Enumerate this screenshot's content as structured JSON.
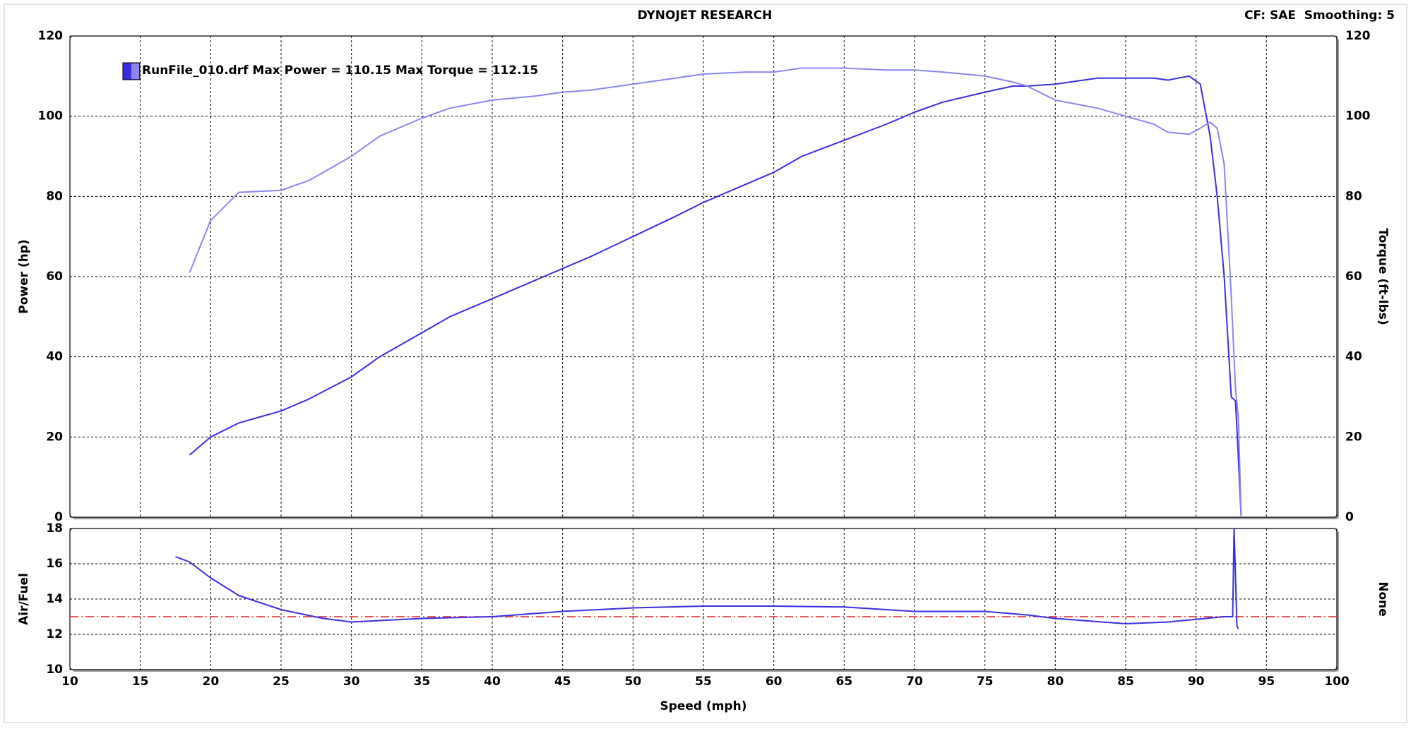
{
  "chart_data": [
    {
      "type": "line",
      "title": "DYNOJET RESEARCH",
      "annotation": "CF: SAE  Smoothing: 5",
      "legend": "RunFile_010.drf Max Power = 110.15 Max Torque = 112.15",
      "ylabel": "Power (hp)",
      "y2label": "Torque (ft-lbs)",
      "x": [
        18.5,
        20,
        22,
        25,
        27,
        30,
        32,
        35,
        37,
        40,
        43,
        45,
        47,
        50,
        53,
        55,
        58,
        60,
        62,
        65,
        68,
        70,
        72,
        75,
        77,
        78,
        80,
        83,
        85,
        87,
        88,
        89.5,
        90.3,
        91,
        91.5,
        92,
        92.5,
        92.8,
        93,
        93.2
      ],
      "series": [
        {
          "color": "#3a2ee0",
          "values": [
            15.5,
            20,
            23.5,
            26.5,
            29.5,
            35,
            40,
            46,
            50,
            54.5,
            59,
            62,
            65,
            70,
            75,
            78.5,
            83,
            86,
            90,
            94,
            98,
            101,
            103.5,
            106,
            107.5,
            107.5,
            108,
            109.5,
            109.5,
            109.5,
            109,
            110,
            108,
            95,
            80,
            60,
            30,
            29,
            15,
            0
          ]
        },
        {
          "color": "#8a86f2",
          "axis": "y2",
          "values": [
            61,
            74,
            81,
            81.5,
            84,
            90,
            95,
            99.5,
            102,
            104,
            105,
            106,
            106.5,
            108,
            109.5,
            110.5,
            111,
            111,
            112,
            112,
            111.5,
            111.5,
            111,
            110,
            108.5,
            107.5,
            104,
            102,
            100,
            98,
            96,
            95.5,
            97,
            98.5,
            97,
            88,
            55,
            32,
            25,
            0
          ]
        }
      ],
      "xlim": [
        10,
        100
      ],
      "xticks": [
        10,
        15,
        20,
        25,
        30,
        35,
        40,
        45,
        50,
        55,
        60,
        65,
        70,
        75,
        80,
        85,
        90,
        95,
        100
      ],
      "ylim": [
        0,
        120
      ],
      "yticks": [
        0,
        20,
        40,
        60,
        80,
        100,
        120
      ],
      "y2lim": [
        0,
        120
      ],
      "y2ticks": [
        0,
        20,
        40,
        60,
        80,
        100,
        120
      ],
      "grid": true
    },
    {
      "type": "line",
      "xlabel": "Speed (mph)",
      "ylabel": "Air/Fuel",
      "y2label": "None",
      "x": [
        17.5,
        18.5,
        20,
        22,
        25,
        28,
        30,
        35,
        40,
        45,
        50,
        55,
        60,
        65,
        70,
        75,
        78,
        80,
        85,
        88,
        92,
        92.6,
        92.7,
        92.9,
        93
      ],
      "series": [
        {
          "color": "#3a2ee0",
          "values": [
            16.4,
            16.1,
            15.2,
            14.2,
            13.4,
            12.9,
            12.7,
            12.9,
            13.0,
            13.3,
            13.5,
            13.6,
            13.6,
            13.55,
            13.3,
            13.3,
            13.1,
            12.9,
            12.6,
            12.7,
            13.0,
            13.0,
            18,
            12.5,
            12.3
          ]
        }
      ],
      "reference_line": 13,
      "reference_color": "#e02020",
      "xlim": [
        10,
        100
      ],
      "xticks": [
        10,
        15,
        20,
        25,
        30,
        35,
        40,
        45,
        50,
        55,
        60,
        65,
        70,
        75,
        80,
        85,
        90,
        95,
        100
      ],
      "ylim": [
        10,
        18
      ],
      "yticks": [
        10,
        12,
        14,
        16,
        18
      ],
      "grid": true
    }
  ]
}
